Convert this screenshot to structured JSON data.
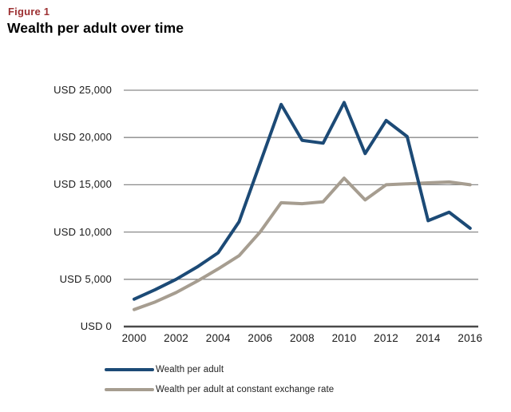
{
  "header": {
    "figure_label": "Figure 1",
    "title": "Wealth per adult over time"
  },
  "chart_data": {
    "type": "line",
    "title": "Wealth per adult over time",
    "x": [
      2000,
      2001,
      2002,
      2003,
      2004,
      2005,
      2006,
      2007,
      2008,
      2009,
      2010,
      2011,
      2012,
      2013,
      2014,
      2015,
      2016
    ],
    "x_tick_labels": [
      "2000",
      "2002",
      "2004",
      "2006",
      "2008",
      "2010",
      "2012",
      "2014",
      "2016"
    ],
    "series": [
      {
        "name": "Wealth per adult",
        "color": "#1c4a76",
        "values": [
          2900,
          3900,
          5000,
          6300,
          7800,
          11100,
          17300,
          23500,
          19700,
          19400,
          23700,
          18300,
          21800,
          20100,
          11200,
          12100,
          10400
        ]
      },
      {
        "name": "Wealth per adult at constant exchange rate",
        "color": "#a69d90",
        "values": [
          1800,
          2600,
          3600,
          4800,
          6100,
          7500,
          10000,
          13100,
          13000,
          13200,
          15700,
          13400,
          15000,
          15100,
          15200,
          15300,
          15000
        ]
      }
    ],
    "ylabel": "USD",
    "ylim": [
      0,
      25000
    ],
    "y_ticks": [
      {
        "value": 25000,
        "label": "USD 25,000"
      },
      {
        "value": 20000,
        "label": "USD 20,000"
      },
      {
        "value": 15000,
        "label": "USD 15,000"
      },
      {
        "value": 10000,
        "label": "USD 10,000"
      },
      {
        "value": 5000,
        "label": "USD 5,000"
      },
      {
        "value": 0,
        "label": "USD 0"
      }
    ],
    "grid": "horizontal gridlines on, zero baseline emphasized",
    "legend_position": "bottom-left"
  },
  "colors": {
    "figure_label_red": "#9d3133",
    "title_black": "#000000",
    "gridline_gray": "#8a8a8a",
    "axis_baseline_gray": "#4a4a4a",
    "tick_text": "#1a1a1a"
  }
}
